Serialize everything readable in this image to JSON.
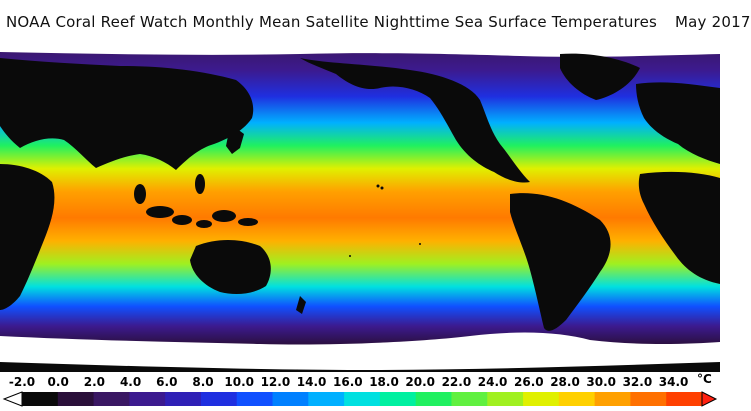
{
  "header": {
    "title": "NOAA Coral Reef Watch Monthly Mean Satellite Nighttime Sea Surface Temperatures",
    "date": "May 2017"
  },
  "colorbar": {
    "ticks": [
      "-2.0",
      "0.0",
      "2.0",
      "4.0",
      "6.0",
      "8.0",
      "10.0",
      "12.0",
      "14.0",
      "16.0",
      "18.0",
      "20.0",
      "22.0",
      "24.0",
      "26.0",
      "28.0",
      "30.0",
      "32.0",
      "34.0"
    ],
    "unit": "°C",
    "colors": [
      "#ffffff",
      "#0a0a0a",
      "#2a0f3a",
      "#3a1763",
      "#3c1a8f",
      "#2f20b6",
      "#1f2fe0",
      "#1050ff",
      "#0080ff",
      "#00b0ff",
      "#00e0e0",
      "#00f0a0",
      "#20f060",
      "#60f040",
      "#a0f020",
      "#e0f000",
      "#ffd000",
      "#ffa000",
      "#ff7000",
      "#ff4000",
      "#ff2010"
    ]
  },
  "map": {
    "projection": "plate carree",
    "land_color": "#000000",
    "ice_color": "#ffffff"
  }
}
